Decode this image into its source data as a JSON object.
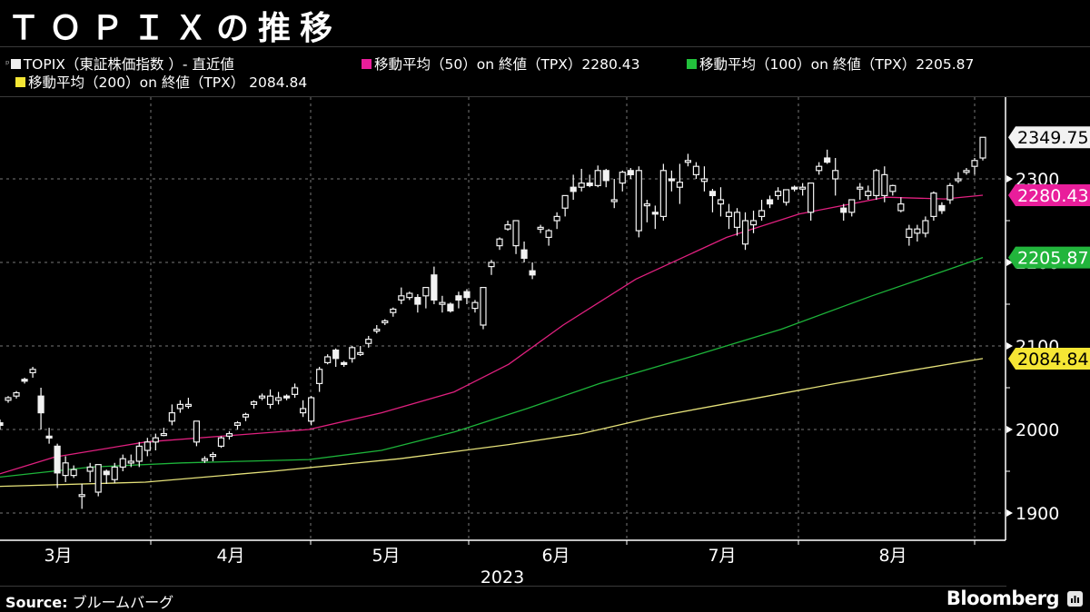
{
  "title": "ＴＯＰＩＸの推移",
  "legend": [
    {
      "label": "TOPIX（東証株価指数 ）- 直近値",
      "color": "#eeeeee",
      "marker": "candle"
    },
    {
      "label": "移動平均（50）on 終値（TPX）2280.43",
      "color": "#e91e9b",
      "marker": "square"
    },
    {
      "label": "移動平均（100）on 終値（TPX）2205.87",
      "color": "#22c03c",
      "marker": "square"
    },
    {
      "label": "移動平均（200）on 終値（TPX） 2084.84",
      "color": "#f5e634",
      "marker": "square"
    }
  ],
  "footer": {
    "source_label": "Source:",
    "source_value": "ブルームバーグ",
    "brand": "Bloomberg"
  },
  "chart_data": {
    "type": "candlestick",
    "title": "ＴＯＰＩＸの推移",
    "xlabel": "2023",
    "ylabel": "",
    "x_ticks": [
      "3月",
      "4月",
      "5月",
      "6月",
      "7月",
      "8月"
    ],
    "x_year": "2023",
    "y_ticks": [
      1900,
      2000,
      2100,
      2200,
      2300
    ],
    "ylim": [
      1870,
      2390
    ],
    "grid": true,
    "legend_position": "top",
    "last_value_labels": [
      {
        "series": "TOPIX",
        "value": "2349.75",
        "bg": "#f2f2f2",
        "fg": "#000000"
      },
      {
        "series": "MA50",
        "value": "2280.43",
        "bg": "#e91e9b",
        "fg": "#ffffff"
      },
      {
        "series": "MA100",
        "value": "2205.87",
        "bg": "#22b53c",
        "fg": "#ffffff"
      },
      {
        "series": "MA200",
        "value": "2084.84",
        "bg": "#f5e634",
        "fg": "#000000"
      }
    ],
    "candles_ohlc_approx": [
      [
        2008,
        2012,
        2000,
        2005
      ],
      [
        2035,
        2040,
        2032,
        2038
      ],
      [
        2040,
        2046,
        2037,
        2044
      ],
      [
        2060,
        2062,
        2055,
        2058
      ],
      [
        2068,
        2075,
        2062,
        2072
      ],
      [
        2040,
        2050,
        2000,
        2020
      ],
      [
        1992,
        2002,
        1983,
        1990
      ],
      [
        1980,
        1983,
        1930,
        1948
      ],
      [
        1945,
        1968,
        1937,
        1960
      ],
      [
        1945,
        1957,
        1942,
        1952
      ],
      [
        1920,
        1935,
        1905,
        1922
      ],
      [
        1950,
        1960,
        1937,
        1955
      ],
      [
        1925,
        1958,
        1920,
        1958
      ],
      [
        1950,
        1952,
        1935,
        1946
      ],
      [
        1940,
        1960,
        1936,
        1955
      ],
      [
        1955,
        1970,
        1950,
        1965
      ],
      [
        1960,
        1970,
        1955,
        1962
      ],
      [
        1962,
        1985,
        1955,
        1980
      ],
      [
        1975,
        1990,
        1968,
        1985
      ],
      [
        1985,
        1995,
        1975,
        1990
      ],
      [
        1995,
        2002,
        1992,
        1995
      ],
      [
        2010,
        2030,
        2005,
        2020
      ],
      [
        2025,
        2035,
        2020,
        2030
      ],
      [
        2030,
        2038,
        2025,
        2030
      ],
      [
        1985,
        2010,
        1980,
        2010
      ],
      [
        1965,
        1968,
        1960,
        1965
      ],
      [
        1968,
        1973,
        1962,
        1970
      ],
      [
        1980,
        1992,
        1978,
        1990
      ],
      [
        1992,
        1998,
        1988,
        1995
      ],
      [
        2005,
        2010,
        2000,
        2008
      ],
      [
        2015,
        2020,
        2010,
        2018
      ],
      [
        2030,
        2035,
        2025,
        2033
      ],
      [
        2040,
        2043,
        2035,
        2040
      ],
      [
        2030,
        2048,
        2025,
        2040
      ],
      [
        2035,
        2045,
        2030,
        2038
      ],
      [
        2040,
        2042,
        2035,
        2038
      ],
      [
        2042,
        2055,
        2038,
        2050
      ],
      [
        2020,
        2035,
        2015,
        2025
      ],
      [
        2010,
        2040,
        2005,
        2038
      ],
      [
        2055,
        2075,
        2045,
        2072
      ],
      [
        2080,
        2090,
        2078,
        2087
      ],
      [
        2095,
        2097,
        2075,
        2085
      ],
      [
        2080,
        2082,
        2075,
        2078
      ],
      [
        2085,
        2100,
        2080,
        2098
      ],
      [
        2090,
        2100,
        2088,
        2092
      ],
      [
        2103,
        2112,
        2098,
        2108
      ],
      [
        2120,
        2125,
        2115,
        2120
      ],
      [
        2128,
        2132,
        2125,
        2130
      ],
      [
        2140,
        2146,
        2135,
        2144
      ],
      [
        2155,
        2170,
        2150,
        2160
      ],
      [
        2158,
        2165,
        2155,
        2163
      ],
      [
        2158,
        2162,
        2140,
        2150
      ],
      [
        2160,
        2170,
        2145,
        2170
      ],
      [
        2185,
        2195,
        2150,
        2155
      ],
      [
        2150,
        2160,
        2140,
        2152
      ],
      [
        2150,
        2152,
        2140,
        2142
      ],
      [
        2160,
        2165,
        2145,
        2155
      ],
      [
        2165,
        2168,
        2150,
        2158
      ],
      [
        2145,
        2155,
        2140,
        2152
      ],
      [
        2125,
        2170,
        2120,
        2170
      ],
      [
        2195,
        2203,
        2185,
        2200
      ],
      [
        2220,
        2230,
        2215,
        2228
      ],
      [
        2240,
        2250,
        2238,
        2245
      ],
      [
        2220,
        2250,
        2210,
        2250
      ],
      [
        2215,
        2225,
        2200,
        2205
      ],
      [
        2190,
        2200,
        2180,
        2185
      ],
      [
        2240,
        2245,
        2235,
        2242
      ],
      [
        2230,
        2240,
        2220,
        2238
      ],
      [
        2250,
        2260,
        2240,
        2255
      ],
      [
        2265,
        2280,
        2255,
        2280
      ],
      [
        2290,
        2305,
        2275,
        2285
      ],
      [
        2290,
        2312,
        2285,
        2295
      ],
      [
        2295,
        2305,
        2290,
        2292
      ],
      [
        2292,
        2316,
        2290,
        2310
      ],
      [
        2310,
        2312,
        2290,
        2298
      ],
      [
        2275,
        2300,
        2265,
        2275
      ],
      [
        2295,
        2310,
        2285,
        2308
      ],
      [
        2310,
        2313,
        2300,
        2305
      ],
      [
        2238,
        2315,
        2230,
        2310
      ],
      [
        2270,
        2275,
        2248,
        2270
      ],
      [
        2260,
        2268,
        2240,
        2258
      ],
      [
        2255,
        2318,
        2250,
        2310
      ],
      [
        2300,
        2310,
        2285,
        2298
      ],
      [
        2290,
        2318,
        2270,
        2296
      ],
      [
        2320,
        2330,
        2315,
        2322
      ],
      [
        2305,
        2320,
        2300,
        2315
      ],
      [
        2297,
        2315,
        2285,
        2300
      ],
      [
        2285,
        2288,
        2260,
        2280
      ],
      [
        2270,
        2290,
        2255,
        2275
      ],
      [
        2255,
        2270,
        2240,
        2260
      ],
      [
        2242,
        2265,
        2232,
        2260
      ],
      [
        2222,
        2260,
        2215,
        2250
      ],
      [
        2245,
        2262,
        2235,
        2250
      ],
      [
        2255,
        2275,
        2250,
        2262
      ],
      [
        2275,
        2280,
        2265,
        2270
      ],
      [
        2280,
        2290,
        2275,
        2285
      ],
      [
        2272,
        2287,
        2268,
        2287
      ],
      [
        2290,
        2292,
        2285,
        2288
      ],
      [
        2288,
        2295,
        2280,
        2290
      ],
      [
        2260,
        2295,
        2250,
        2295
      ],
      [
        2310,
        2320,
        2305,
        2315
      ],
      [
        2325,
        2335,
        2318,
        2320
      ],
      [
        2300,
        2325,
        2280,
        2310
      ],
      [
        2265,
        2270,
        2250,
        2260
      ],
      [
        2260,
        2275,
        2255,
        2275
      ],
      [
        2290,
        2295,
        2275,
        2290
      ],
      [
        2280,
        2292,
        2275,
        2285
      ],
      [
        2280,
        2312,
        2275,
        2310
      ],
      [
        2280,
        2315,
        2272,
        2305
      ],
      [
        2285,
        2293,
        2280,
        2292
      ],
      [
        2262,
        2278,
        2260,
        2270
      ],
      [
        2230,
        2245,
        2220,
        2240
      ],
      [
        2235,
        2245,
        2225,
        2240
      ],
      [
        2235,
        2255,
        2230,
        2250
      ],
      [
        2255,
        2285,
        2250,
        2283
      ],
      [
        2268,
        2272,
        2258,
        2262
      ],
      [
        2275,
        2295,
        2270,
        2292
      ],
      [
        2300,
        2308,
        2295,
        2300
      ],
      [
        2310,
        2313,
        2305,
        2310
      ],
      [
        2315,
        2325,
        2305,
        2322
      ],
      [
        2325,
        2350,
        2322,
        2349.75
      ]
    ],
    "series": [
      {
        "name": "移動平均（50）",
        "color": "#e0207f",
        "last": 2280.43,
        "points": [
          [
            0,
            1947
          ],
          [
            60,
            1967
          ],
          [
            160,
            1985
          ],
          [
            340,
            2000
          ],
          [
            420,
            2020
          ],
          [
            500,
            2045
          ],
          [
            560,
            2078
          ],
          [
            620,
            2125
          ],
          [
            700,
            2180
          ],
          [
            800,
            2230
          ],
          [
            880,
            2258
          ],
          [
            975,
            2278
          ],
          [
            1040,
            2276
          ],
          [
            1082,
            2280.43
          ]
        ]
      },
      {
        "name": "移動平均（100）",
        "color": "#1db43a",
        "last": 2205.87,
        "points": [
          [
            0,
            1943
          ],
          [
            100,
            1955
          ],
          [
            200,
            1960
          ],
          [
            340,
            1964
          ],
          [
            420,
            1975
          ],
          [
            500,
            1997
          ],
          [
            580,
            2025
          ],
          [
            660,
            2055
          ],
          [
            760,
            2087
          ],
          [
            860,
            2120
          ],
          [
            960,
            2160
          ],
          [
            1040,
            2190
          ],
          [
            1082,
            2205.87
          ]
        ]
      },
      {
        "name": "移動平均（200）",
        "color": "#e6e27a",
        "last": 2084.84,
        "points": [
          [
            0,
            1932
          ],
          [
            160,
            1937
          ],
          [
            300,
            1950
          ],
          [
            440,
            1965
          ],
          [
            560,
            1982
          ],
          [
            640,
            1995
          ],
          [
            720,
            2015
          ],
          [
            820,
            2035
          ],
          [
            920,
            2055
          ],
          [
            1010,
            2072
          ],
          [
            1082,
            2084.84
          ]
        ]
      }
    ]
  }
}
